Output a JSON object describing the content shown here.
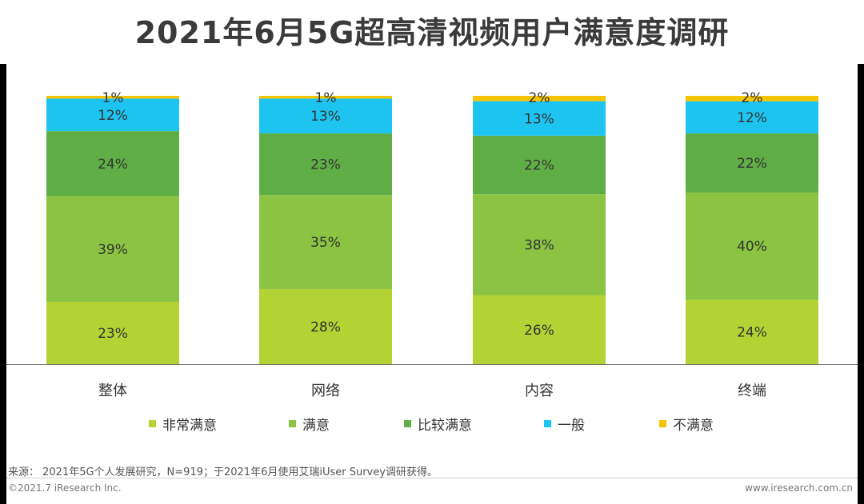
{
  "chart_data": {
    "type": "bar",
    "stacked": true,
    "normalized_percent": true,
    "title": "2021年6月5G超高清视频用户满意度调研",
    "categories": [
      "整体",
      "网络",
      "内容",
      "终端"
    ],
    "series": [
      {
        "name": "非常满意",
        "color": "#b3d334",
        "values": [
          23,
          28,
          26,
          24
        ]
      },
      {
        "name": "满意",
        "color": "#8bc342",
        "values": [
          39,
          35,
          38,
          40
        ]
      },
      {
        "name": "比较满意",
        "color": "#5fae45",
        "values": [
          24,
          23,
          22,
          22
        ]
      },
      {
        "name": "一般",
        "color": "#1ec4f0",
        "values": [
          12,
          13,
          13,
          12
        ]
      },
      {
        "name": "不满意",
        "color": "#f5c400",
        "values": [
          1,
          1,
          2,
          2
        ]
      }
    ],
    "legend_position": "bottom",
    "grid": false
  },
  "footer": {
    "source": "来源： 2021年5G个人发展研究，N=919；于2021年6月使用艾瑞iUser Survey调研获得。",
    "copyright": "©2021.7 iResearch Inc.",
    "website": "www.iresearch.com.cn"
  }
}
